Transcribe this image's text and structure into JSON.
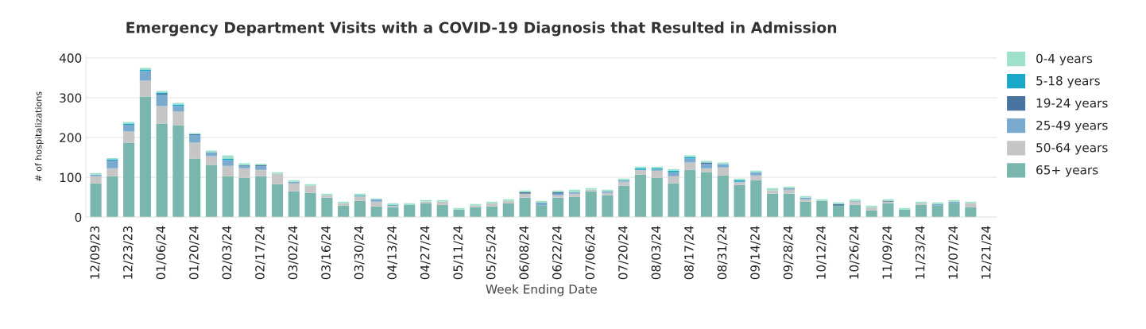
{
  "chart_data": {
    "type": "bar",
    "title": "Emergency Department Visits with a COVID-19 Diagnosis that Resulted in Admission",
    "xlabel": "Week Ending Date",
    "ylabel": "# of hospitalizations",
    "categories": [
      "12/09/23",
      null,
      "12/23/23",
      null,
      "01/06/24",
      null,
      "01/20/24",
      null,
      "02/03/24",
      null,
      "02/17/24",
      null,
      "03/02/24",
      null,
      "03/16/24",
      null,
      "03/30/24",
      null,
      "04/13/24",
      null,
      "04/27/24",
      null,
      "05/11/24",
      null,
      "05/25/24",
      null,
      "06/08/24",
      null,
      "06/22/24",
      null,
      "07/06/24",
      null,
      "07/20/24",
      null,
      "08/03/24",
      null,
      "08/17/24",
      null,
      "08/31/24",
      null,
      "09/14/24",
      null,
      "09/28/24",
      null,
      "10/12/24",
      null,
      "10/26/24",
      null,
      "11/09/24",
      null,
      "11/23/24",
      null,
      "12/07/24",
      null,
      "12/21/24"
    ],
    "stacked": true,
    "series": [
      {
        "name": "65+ years",
        "color": "#78b6ae",
        "values": [
          85,
          103,
          187,
          303,
          235,
          231,
          147,
          131,
          103,
          99,
          103,
          83,
          65,
          61,
          49,
          29,
          41,
          27,
          25,
          31,
          35,
          31,
          19,
          25,
          27,
          35,
          49,
          29,
          49,
          51,
          65,
          55,
          79,
          107,
          99,
          85,
          119,
          113,
          105,
          81,
          93,
          59,
          59,
          39,
          41,
          29,
          31,
          17,
          35,
          19,
          31,
          29,
          35,
          25,
          null
        ]
      },
      {
        "name": "50-64 years",
        "color": "#c6c6c6",
        "values": [
          18,
          20,
          28,
          40,
          44,
          34,
          40,
          22,
          26,
          24,
          16,
          26,
          20,
          18,
          6,
          6,
          12,
          12,
          4,
          0,
          4,
          8,
          0,
          4,
          8,
          6,
          10,
          null,
          6,
          8,
          4,
          6,
          10,
          12,
          18,
          18,
          18,
          10,
          20,
          8,
          12,
          9,
          10,
          6,
          0,
          null,
          8,
          8,
          4,
          0,
          4,
          null,
          0,
          10,
          null
        ]
      },
      {
        "name": "25-49 years",
        "color": "#7aaacd",
        "values": [
          4,
          19,
          17,
          24,
          29,
          14,
          19,
          10,
          14,
          6,
          9,
          0,
          4,
          0,
          0,
          0,
          0,
          6,
          0,
          0,
          0,
          0,
          0,
          0,
          0,
          0,
          0,
          8,
          4,
          4,
          0,
          4,
          4,
          0,
          3,
          10,
          10,
          10,
          8,
          0,
          8,
          0,
          4,
          4,
          0,
          0,
          2,
          0,
          0,
          0,
          0,
          4,
          4,
          0,
          null
        ]
      },
      {
        "name": "19-24 years",
        "color": "#4a74a0",
        "values": [
          0,
          0,
          0,
          0,
          2,
          0,
          2,
          0,
          0,
          1,
          2,
          0,
          0,
          0,
          0,
          0,
          0,
          0,
          0,
          0,
          0,
          0,
          0,
          0,
          0,
          0,
          4,
          0,
          4,
          0,
          0,
          0,
          0,
          0,
          0,
          0,
          0,
          4,
          0,
          0,
          0,
          0,
          0,
          0,
          0,
          4,
          0,
          0,
          2,
          0,
          0,
          0,
          0,
          0,
          null
        ]
      },
      {
        "name": "5-18 years",
        "color": "#1aa8c8",
        "values": [
          0,
          3,
          3,
          4,
          3,
          4,
          0,
          0,
          4,
          0,
          0,
          0,
          0,
          0,
          0,
          0,
          2,
          0,
          2,
          0,
          0,
          0,
          0,
          0,
          0,
          0,
          0,
          0,
          0,
          0,
          0,
          0,
          0,
          4,
          3,
          4,
          4,
          0,
          0,
          4,
          0,
          0,
          0,
          0,
          0,
          0,
          0,
          0,
          0,
          0,
          0,
          0,
          0,
          0,
          null
        ]
      },
      {
        "name": "0-4 years",
        "color": "#9fe2cc",
        "values": [
          4,
          3,
          4,
          4,
          4,
          4,
          3,
          4,
          8,
          5,
          4,
          4,
          4,
          4,
          4,
          4,
          4,
          2,
          4,
          4,
          4,
          4,
          4,
          4,
          4,
          4,
          4,
          4,
          4,
          6,
          4,
          4,
          4,
          4,
          4,
          4,
          4,
          4,
          4,
          4,
          4,
          5,
          4,
          4,
          4,
          4,
          4,
          4,
          4,
          4,
          4,
          4,
          4,
          4,
          null
        ]
      }
    ],
    "ylim": [
      0,
      405
    ],
    "yticks": [
      0,
      100,
      200,
      300,
      400
    ],
    "grid": "y",
    "legend": "right"
  }
}
